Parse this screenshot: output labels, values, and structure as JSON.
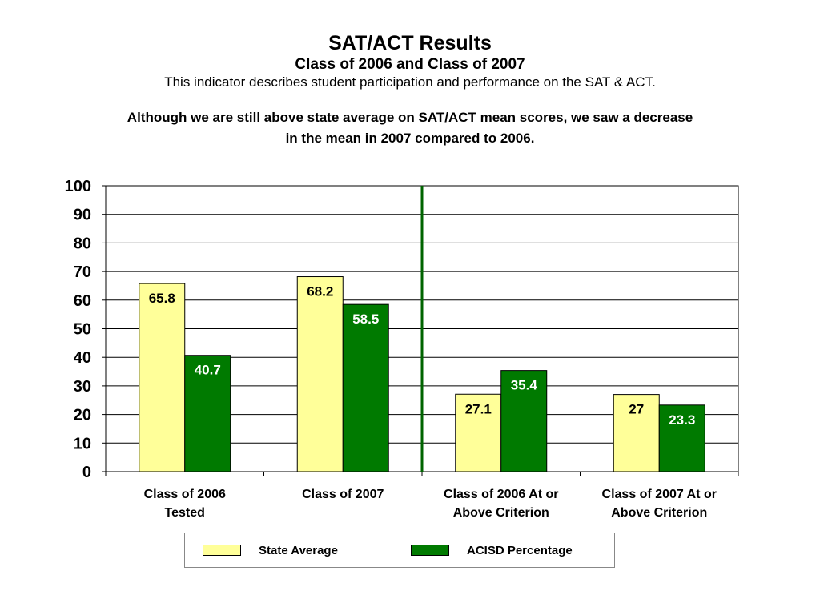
{
  "header": {
    "title": "SAT/ACT Results",
    "subtitle": "Class of 2006 and Class of 2007",
    "description": "This indicator describes student participation and performance on the SAT & ACT.",
    "note_line1": "Although we are still above state average on SAT/ACT mean scores, we saw a decrease",
    "note_line2": "in the mean in 2007 compared to 2006."
  },
  "colors": {
    "state_average": "#ffff99",
    "acisd": "#007a00",
    "divider": "#006400"
  },
  "chart_data": {
    "type": "bar",
    "categories": [
      [
        "Class of 2006",
        "Tested"
      ],
      [
        "Class of 2007"
      ],
      [
        "Class of 2006 At or",
        "Above Criterion"
      ],
      [
        "Class of 2007 At or",
        "Above Criterion"
      ]
    ],
    "series": [
      {
        "name": "State Average",
        "values": [
          65.8,
          68.2,
          27.1,
          27
        ],
        "labels": [
          "65.8",
          "68.2",
          "27.1",
          "27"
        ]
      },
      {
        "name": "ACISD Percentage",
        "values": [
          40.7,
          58.5,
          35.4,
          23.3
        ],
        "labels": [
          "40.7",
          "58.5",
          "35.4",
          "23.3"
        ]
      }
    ],
    "ylim": [
      0,
      100
    ],
    "yticks": [
      "0",
      "10",
      "20",
      "30",
      "40",
      "50",
      "60",
      "70",
      "80",
      "90",
      "100"
    ],
    "grid": true,
    "legend": "bottom"
  }
}
